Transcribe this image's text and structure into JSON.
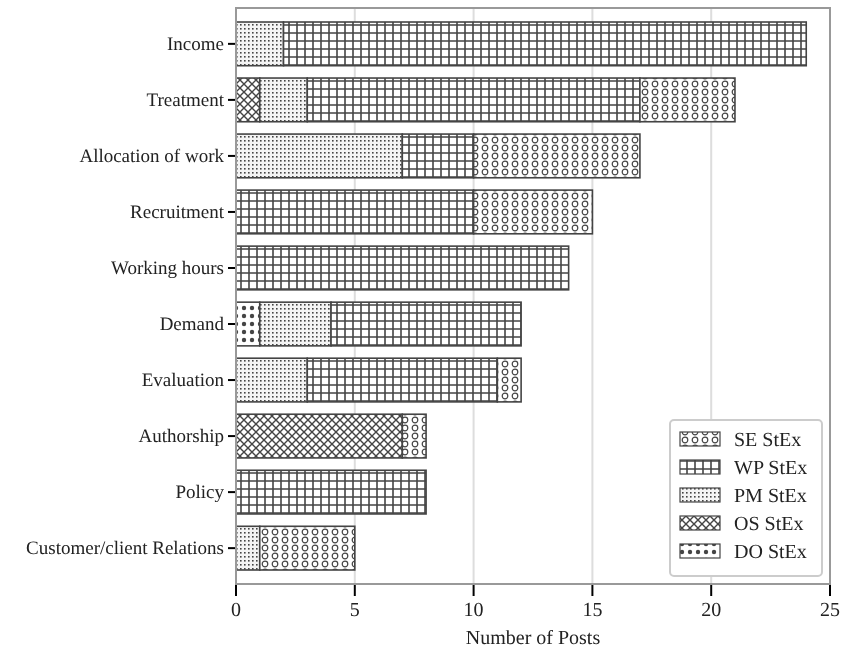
{
  "chart_data": {
    "type": "bar",
    "orientation": "horizontal",
    "stacked": true,
    "categories": [
      "Income",
      "Treatment",
      "Allocation of work",
      "Recruitment",
      "Working hours",
      "Demand",
      "Evaluation",
      "Authorship",
      "Policy",
      "Customer/client Relations"
    ],
    "series": [
      {
        "name": "DO StEx",
        "color": "#444444",
        "values": [
          null,
          null,
          null,
          null,
          null,
          1,
          null,
          null,
          null,
          null
        ]
      },
      {
        "name": "OS StEx",
        "color": "#444444",
        "values": [
          null,
          1,
          null,
          null,
          null,
          null,
          null,
          7,
          null,
          null
        ]
      },
      {
        "name": "PM StEx",
        "color": "#444444",
        "values": [
          2,
          2,
          7,
          null,
          null,
          3,
          3,
          null,
          null,
          1
        ]
      },
      {
        "name": "WP StEx",
        "color": "#444444",
        "values": [
          22,
          14,
          3,
          10,
          14,
          8,
          8,
          null,
          8,
          null
        ]
      },
      {
        "name": "SE StEx",
        "color": "#444444",
        "values": [
          null,
          4,
          7,
          5,
          null,
          null,
          1,
          1,
          null,
          4
        ]
      }
    ],
    "xlabel": "Number of Posts",
    "xlim": [
      0,
      25
    ],
    "xticks": [
      0,
      5,
      10,
      15,
      20,
      25
    ],
    "grid": "x",
    "legend": "bottom right"
  }
}
